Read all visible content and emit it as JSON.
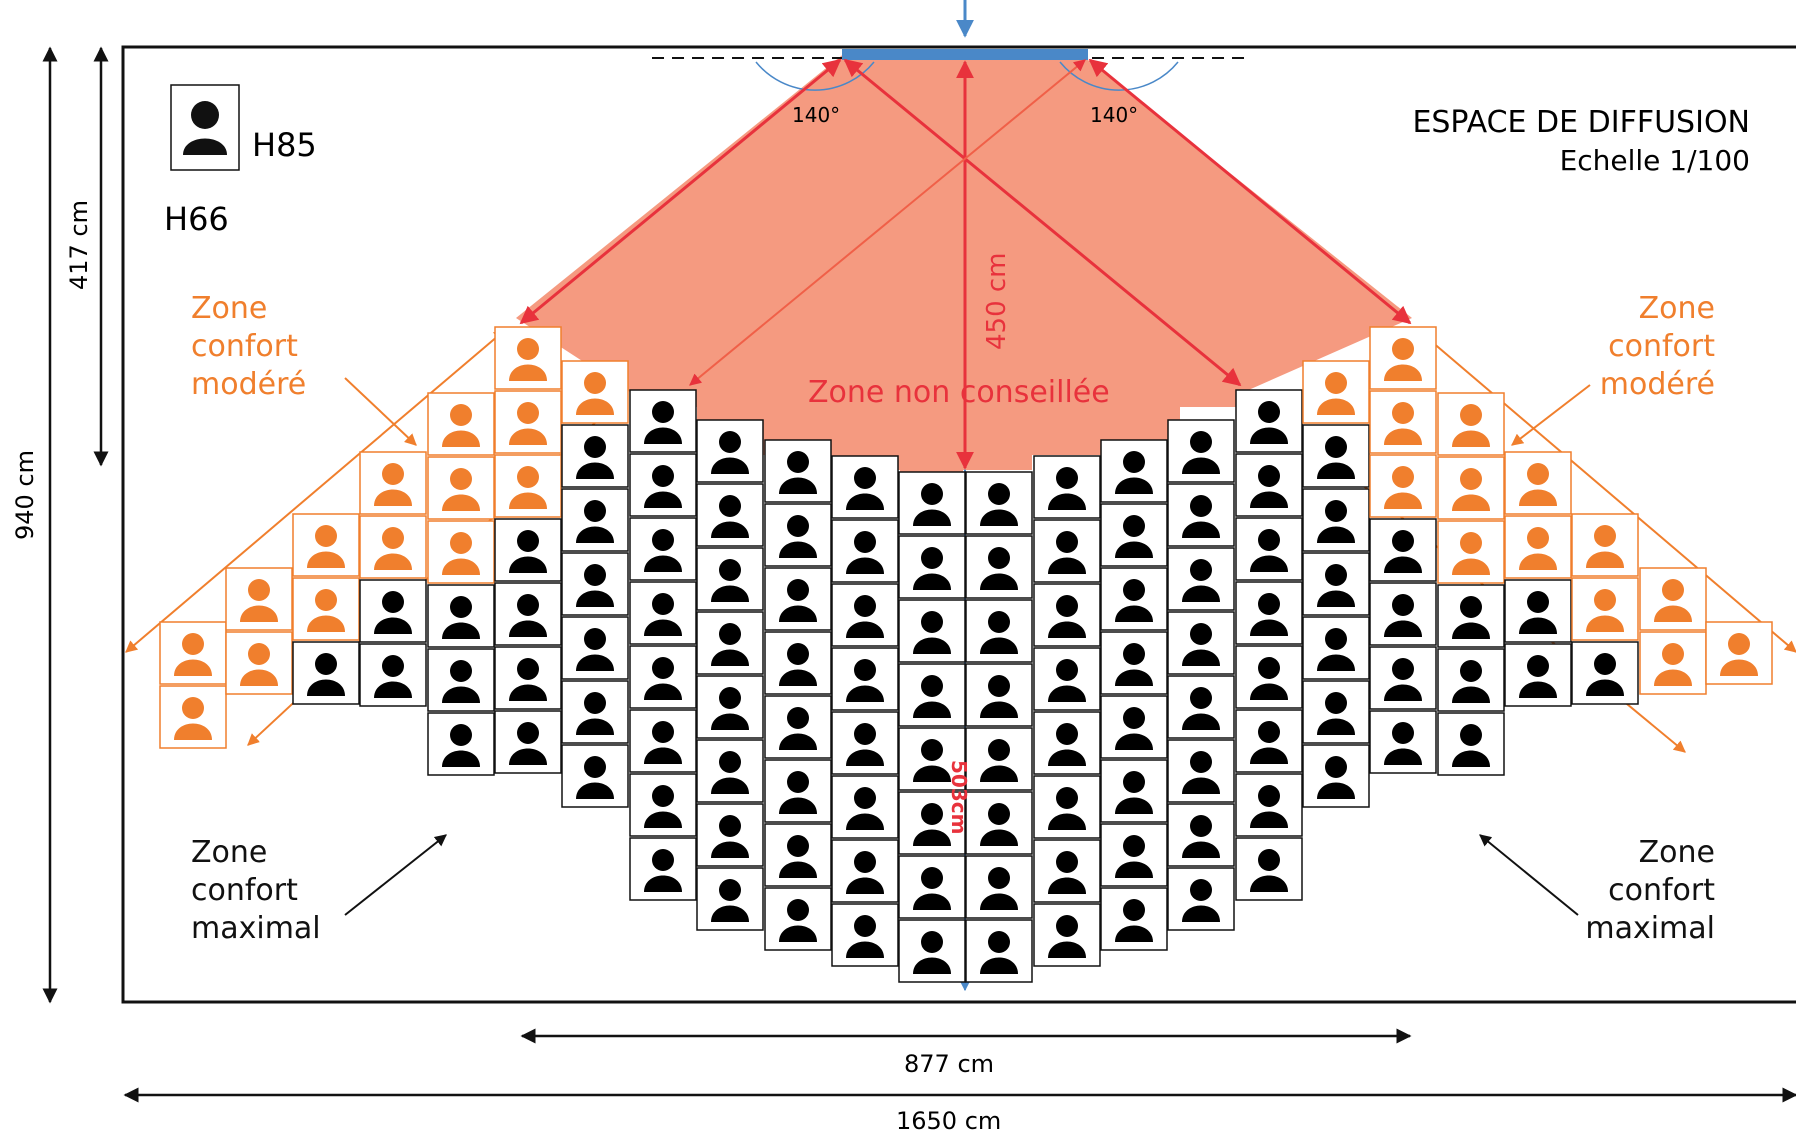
{
  "title": "ESPACE DE DIFFUSION",
  "scale": "Echelle 1/100",
  "legend": {
    "icon": "person-silhouette-icon",
    "h85": "H85",
    "h66": "H66"
  },
  "dimensions": {
    "total_depth": "940 cm",
    "zone_depth": "417 cm",
    "angle_left": "140°",
    "angle_right": "140°",
    "screen_distance": "450 cm",
    "center_depth": "503cm",
    "seating_width": "877 cm",
    "room_width": "1650 cm"
  },
  "zones": {
    "not_recommended": "Zone non conseillée",
    "moderate_left": [
      "Zone",
      "confort",
      "modéré"
    ],
    "moderate_right": [
      "Zone",
      "confort",
      "modéré"
    ],
    "maximal_left": [
      "Zone",
      "confort",
      "maximal"
    ],
    "maximal_right": [
      "Zone",
      "confort",
      "maximal"
    ]
  },
  "colors": {
    "moderate": "#f07f2d",
    "maximal": "#000000",
    "not_recommended_fill": "#f59a80",
    "not_recommended_line": "#e8323c",
    "screen": "#4a88c8"
  }
}
